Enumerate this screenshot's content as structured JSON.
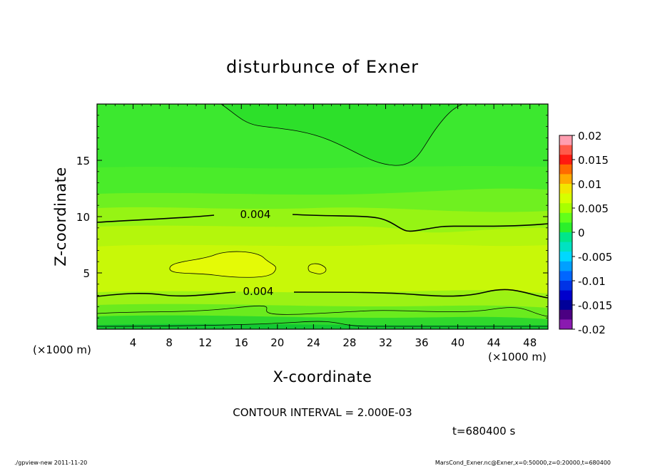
{
  "chart_data": {
    "type": "heatmap",
    "title": "disturbunce of Exner",
    "xlabel": "X-coordinate",
    "ylabel": "Z-coordinate",
    "x_unit": "(×1000 m)",
    "x_unit_right": "(×1000 m)",
    "xlim": [
      0,
      50
    ],
    "ylim": [
      0,
      20
    ],
    "x_ticks": [
      4,
      8,
      12,
      16,
      20,
      24,
      28,
      32,
      36,
      40,
      44,
      48
    ],
    "x_tick_labels": [
      "4",
      "8",
      "12",
      "16",
      "20",
      "24",
      "28",
      "32",
      "36",
      "40",
      "44",
      "48"
    ],
    "y_ticks": [
      5,
      10,
      15
    ],
    "y_tick_labels": [
      "5",
      "10",
      "15"
    ],
    "colorbar": {
      "ticks": [
        0.02,
        0.015,
        0.01,
        0.005,
        0,
        -0.005,
        -0.01,
        -0.015,
        -0.02
      ],
      "tick_labels": [
        "0.02",
        "0.015",
        "0.01",
        "0.005",
        "0",
        "-0.005",
        "-0.01",
        "-0.015",
        "-0.02"
      ],
      "colors": [
        "#ff9eb0",
        "#ff5a4a",
        "#ff1a10",
        "#ff6a00",
        "#ffaa00",
        "#f2e600",
        "#d6ff00",
        "#a8ff00",
        "#62ff1a",
        "#2bf02b",
        "#00e68a",
        "#00e2c2",
        "#00d8ff",
        "#00a0ff",
        "#0066ff",
        "#0033e6",
        "#0000cc",
        "#000099",
        "#4b0082",
        "#8a1ab0"
      ]
    },
    "contour_labels": [
      "0.004",
      "0.004"
    ],
    "contour_interval": "CONTOUR INTERVAL = 2.000E-03",
    "time_label": "t=680400 s"
  },
  "footer": {
    "left": "./gpview-new   2011-11-20",
    "right": "MarsCond_Exner.nc@Exner,x=0:50000,z=0:20000,t=680400"
  }
}
